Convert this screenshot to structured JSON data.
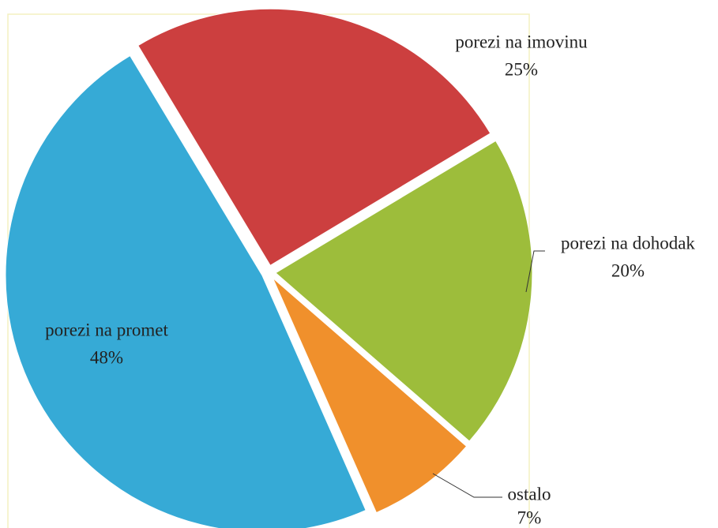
{
  "chart_data": {
    "type": "pie",
    "categories": [
      "porezi na imovinu",
      "porezi na dohodak",
      "ostalo",
      "porezi na promet"
    ],
    "values": [
      25,
      20,
      7,
      48
    ],
    "value_labels": [
      "25%",
      "20%",
      "7%",
      "48%"
    ],
    "colors": [
      "#cc3f3f",
      "#9dbd3b",
      "#f0902c",
      "#36aad6"
    ]
  }
}
